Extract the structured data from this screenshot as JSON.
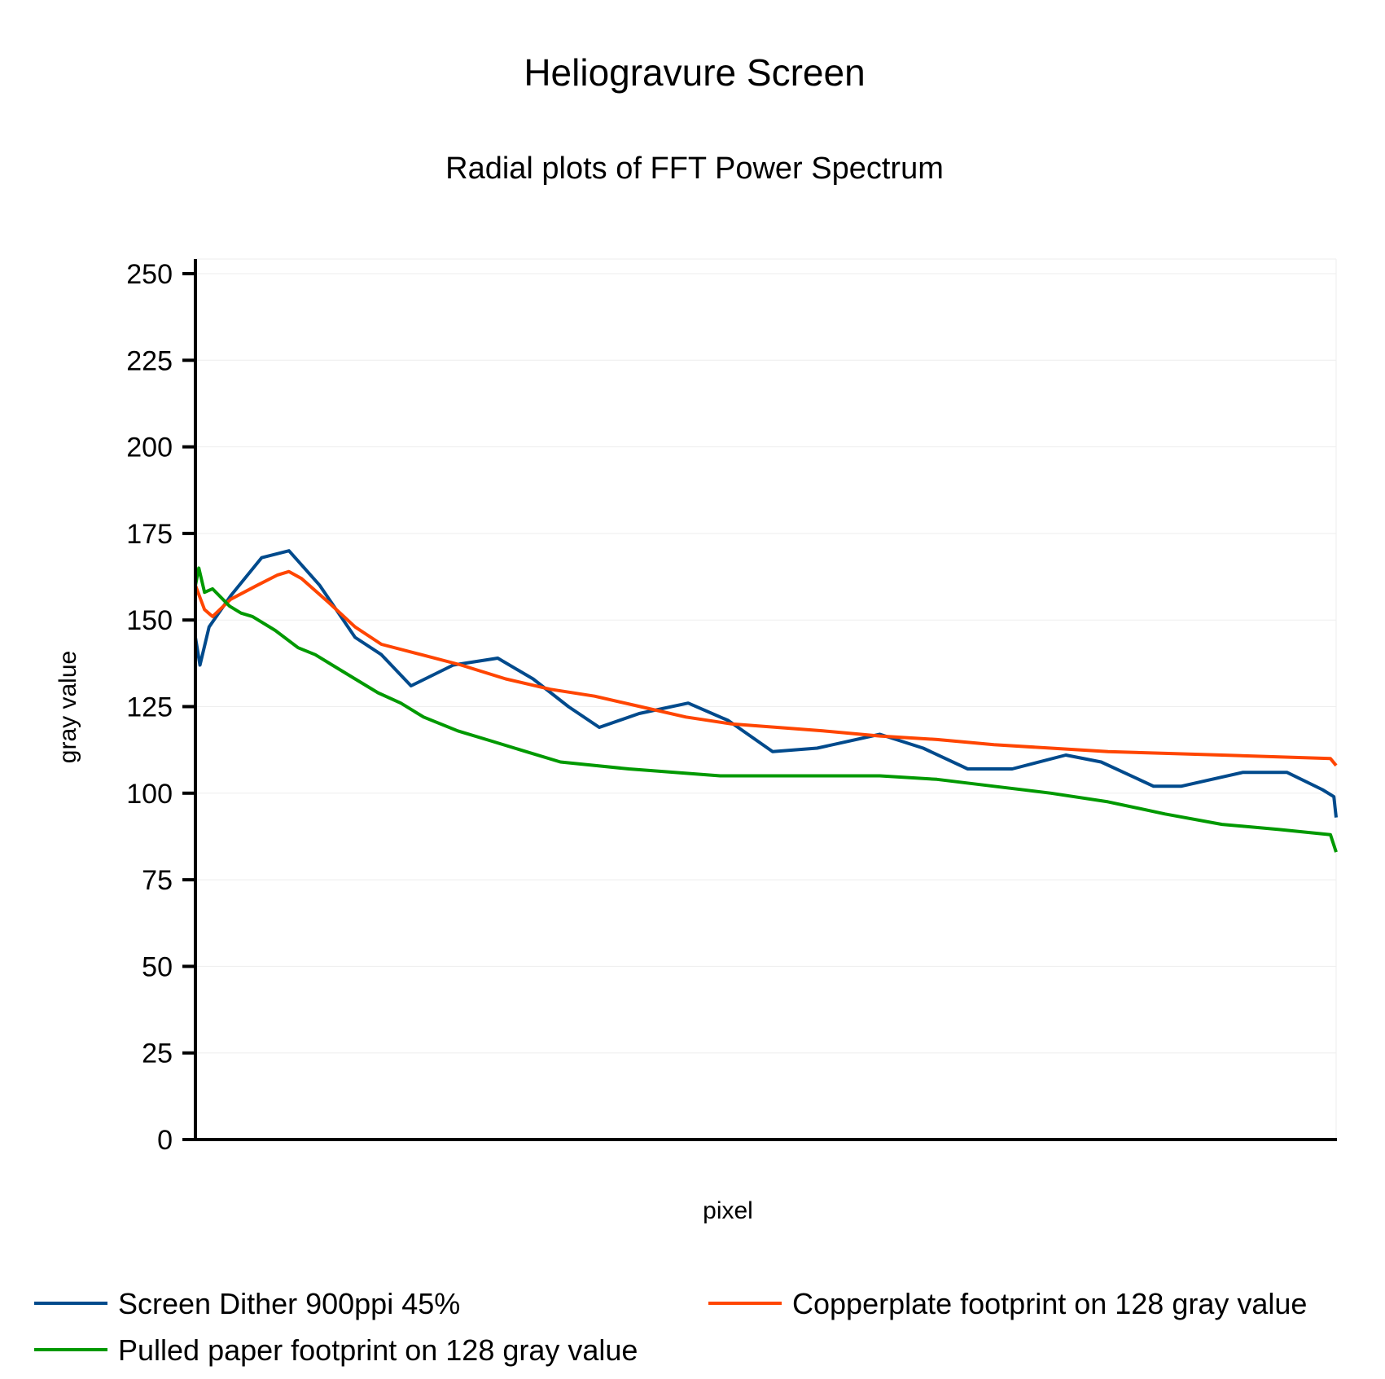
{
  "chart_data": {
    "type": "line",
    "title": "Heliogravure Screen",
    "subtitle": "Radial plots of FFT Power Spectrum",
    "xlabel": "pixel",
    "ylabel": "gray value",
    "xlim": [
      0,
      100
    ],
    "ylim": [
      0,
      255
    ],
    "yticks": [
      0,
      25,
      50,
      75,
      100,
      125,
      150,
      175,
      200,
      225,
      250
    ],
    "grid": true,
    "legend_position": "bottom",
    "series": [
      {
        "name": "Screen Dither 900ppi 45%",
        "color": "#004a8c",
        "x": [
          0,
          0.4,
          1.2,
          3.1,
          5.8,
          8.2,
          10.9,
          14,
          16.3,
          18.9,
          22.6,
          26.5,
          29.6,
          32.7,
          35.4,
          38.9,
          43.2,
          46.7,
          50.6,
          54.5,
          60,
          63.8,
          67.7,
          71.6,
          76.3,
          79.4,
          84,
          86.4,
          91.8,
          95.7,
          98.8,
          99.8,
          100
        ],
        "y": [
          145,
          137,
          148,
          157,
          168,
          170,
          160,
          145,
          140,
          131,
          137,
          139,
          133,
          125,
          119,
          123,
          126,
          121,
          112,
          113,
          117,
          113,
          107,
          107,
          111,
          109,
          102,
          102,
          106,
          106,
          101,
          99,
          93
        ]
      },
      {
        "name": "Copperplate footprint on 128 gray value",
        "color": "#ff4500",
        "x": [
          0,
          0.8,
          1.5,
          3.1,
          5.4,
          7.2,
          8.2,
          9.3,
          11.7,
          14,
          16.3,
          19.8,
          23.3,
          27.2,
          31.1,
          35,
          39,
          43,
          47,
          51,
          55,
          60,
          65,
          70,
          75,
          80,
          85,
          90,
          95,
          99.5,
          100
        ],
        "y": [
          160,
          153,
          151,
          156,
          160,
          163,
          164,
          162,
          155,
          148,
          143,
          140,
          137,
          133,
          130,
          128,
          125,
          122,
          120,
          119,
          118,
          116.5,
          115.5,
          114,
          113,
          112,
          111.5,
          111,
          110.5,
          110,
          108
        ]
      },
      {
        "name": "Pulled paper footprint on 128 gray value",
        "color": "#009900",
        "x": [
          0,
          0.3,
          0.8,
          1.5,
          3,
          4,
          5,
          7,
          9,
          10.5,
          12,
          14,
          16,
          18,
          20,
          23,
          26,
          29,
          32,
          35,
          38,
          42,
          46,
          50,
          55,
          60,
          65,
          70,
          75,
          80,
          85,
          90,
          95,
          99.5,
          100
        ],
        "y": [
          160,
          165,
          158,
          159,
          154,
          152,
          151,
          147,
          142,
          140,
          137,
          133,
          129,
          126,
          122,
          118,
          115,
          112,
          109,
          108,
          107,
          106,
          105,
          105,
          105,
          105,
          104,
          102,
          100,
          97.5,
          94,
          91,
          89.5,
          88,
          83
        ]
      }
    ]
  }
}
